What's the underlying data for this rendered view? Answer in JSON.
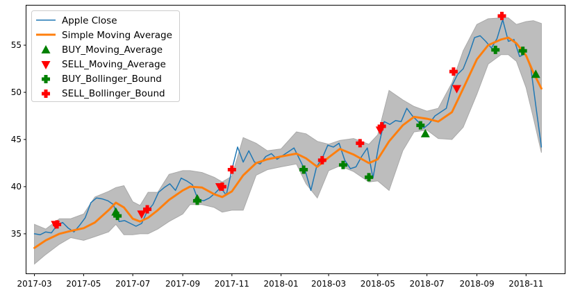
{
  "chart_data": {
    "type": "line",
    "title": "",
    "xlabel": "",
    "ylabel": "",
    "grid": false,
    "legend_position": "top-left",
    "x_range": [
      "2017-02-19",
      "2018-12-19"
    ],
    "ylim": [
      30.8,
      59.2
    ],
    "x_ticks": [
      "2017-03",
      "2017-05",
      "2017-07",
      "2017-09",
      "2017-11",
      "2018-01",
      "2018-03",
      "2018-05",
      "2018-07",
      "2018-09",
      "2018-11"
    ],
    "y_ticks": [
      35,
      40,
      45,
      50,
      55
    ],
    "colors": {
      "close": "#1f77b4",
      "sma": "#ff7f0e",
      "band": "#bdbdbd",
      "band_edge": "#a9a9a9",
      "buy": "#008000",
      "sell": "#ff0000"
    },
    "series": [
      {
        "name": "Apple Close",
        "points": [
          [
            "2017-03-01",
            35.0
          ],
          [
            "2017-03-08",
            34.9
          ],
          [
            "2017-03-15",
            35.2
          ],
          [
            "2017-03-22",
            35.1
          ],
          [
            "2017-03-29",
            35.9
          ],
          [
            "2017-04-05",
            36.2
          ],
          [
            "2017-04-12",
            35.6
          ],
          [
            "2017-04-19",
            35.2
          ],
          [
            "2017-04-26",
            35.9
          ],
          [
            "2017-05-03",
            36.7
          ],
          [
            "2017-05-10",
            38.3
          ],
          [
            "2017-05-17",
            38.8
          ],
          [
            "2017-05-24",
            38.7
          ],
          [
            "2017-05-31",
            38.5
          ],
          [
            "2017-06-07",
            38.1
          ],
          [
            "2017-06-14",
            36.3
          ],
          [
            "2017-06-21",
            36.4
          ],
          [
            "2017-06-28",
            36.1
          ],
          [
            "2017-07-05",
            35.8
          ],
          [
            "2017-07-12",
            36.1
          ],
          [
            "2017-07-19",
            37.4
          ],
          [
            "2017-07-26",
            38.1
          ],
          [
            "2017-08-02",
            39.4
          ],
          [
            "2017-08-09",
            39.9
          ],
          [
            "2017-08-16",
            40.3
          ],
          [
            "2017-08-23",
            39.6
          ],
          [
            "2017-08-30",
            40.9
          ],
          [
            "2017-09-06",
            40.6
          ],
          [
            "2017-09-13",
            40.2
          ],
          [
            "2017-09-20",
            38.6
          ],
          [
            "2017-09-27",
            38.5
          ],
          [
            "2017-10-04",
            38.8
          ],
          [
            "2017-10-11",
            39.3
          ],
          [
            "2017-10-18",
            39.9
          ],
          [
            "2017-10-25",
            39.1
          ],
          [
            "2017-11-01",
            41.8
          ],
          [
            "2017-11-08",
            44.2
          ],
          [
            "2017-11-15",
            42.6
          ],
          [
            "2017-11-22",
            43.8
          ],
          [
            "2017-11-29",
            42.6
          ],
          [
            "2017-12-06",
            42.4
          ],
          [
            "2017-12-13",
            43.2
          ],
          [
            "2017-12-20",
            43.5
          ],
          [
            "2017-12-27",
            42.9
          ],
          [
            "2018-01-03",
            43.3
          ],
          [
            "2018-01-10",
            43.7
          ],
          [
            "2018-01-17",
            44.1
          ],
          [
            "2018-01-24",
            42.9
          ],
          [
            "2018-01-31",
            41.7
          ],
          [
            "2018-02-07",
            39.6
          ],
          [
            "2018-02-14",
            42.1
          ],
          [
            "2018-02-21",
            43.0
          ],
          [
            "2018-02-28",
            44.4
          ],
          [
            "2018-03-07",
            44.2
          ],
          [
            "2018-03-14",
            44.6
          ],
          [
            "2018-03-21",
            42.8
          ],
          [
            "2018-03-28",
            41.9
          ],
          [
            "2018-04-04",
            42.1
          ],
          [
            "2018-04-11",
            43.2
          ],
          [
            "2018-04-18",
            44.1
          ],
          [
            "2018-04-25",
            40.9
          ],
          [
            "2018-05-02",
            44.3
          ],
          [
            "2018-05-09",
            46.9
          ],
          [
            "2018-05-16",
            46.6
          ],
          [
            "2018-05-23",
            47.0
          ],
          [
            "2018-05-30",
            46.9
          ],
          [
            "2018-06-06",
            48.3
          ],
          [
            "2018-06-13",
            47.5
          ],
          [
            "2018-06-20",
            46.9
          ],
          [
            "2018-06-27",
            46.2
          ],
          [
            "2018-07-04",
            46.7
          ],
          [
            "2018-07-11",
            47.5
          ],
          [
            "2018-07-18",
            47.9
          ],
          [
            "2018-07-25",
            48.3
          ],
          [
            "2018-08-01",
            50.7
          ],
          [
            "2018-08-08",
            51.9
          ],
          [
            "2018-08-15",
            52.5
          ],
          [
            "2018-08-22",
            54.0
          ],
          [
            "2018-08-29",
            55.8
          ],
          [
            "2018-09-05",
            56.0
          ],
          [
            "2018-09-12",
            55.4
          ],
          [
            "2018-09-19",
            54.7
          ],
          [
            "2018-09-26",
            55.7
          ],
          [
            "2018-10-03",
            57.7
          ],
          [
            "2018-10-10",
            55.4
          ],
          [
            "2018-10-17",
            55.6
          ],
          [
            "2018-10-24",
            53.8
          ],
          [
            "2018-10-31",
            54.1
          ],
          [
            "2018-11-07",
            52.5
          ],
          [
            "2018-11-14",
            48.0
          ],
          [
            "2018-11-20",
            44.2
          ]
        ]
      },
      {
        "name": "Simple Moving Average",
        "points": [
          [
            "2017-03-01",
            33.5
          ],
          [
            "2017-03-15",
            34.3
          ],
          [
            "2017-04-01",
            35.0
          ],
          [
            "2017-04-15",
            35.3
          ],
          [
            "2017-05-01",
            35.6
          ],
          [
            "2017-05-15",
            36.2
          ],
          [
            "2017-06-01",
            37.5
          ],
          [
            "2017-06-10",
            38.3
          ],
          [
            "2017-06-20",
            37.8
          ],
          [
            "2017-07-01",
            36.6
          ],
          [
            "2017-07-10",
            36.3
          ],
          [
            "2017-07-20",
            36.7
          ],
          [
            "2017-08-01",
            37.5
          ],
          [
            "2017-08-15",
            38.6
          ],
          [
            "2017-09-01",
            39.6
          ],
          [
            "2017-09-10",
            40.0
          ],
          [
            "2017-09-25",
            39.9
          ],
          [
            "2017-10-10",
            39.2
          ],
          [
            "2017-10-20",
            38.9
          ],
          [
            "2017-11-01",
            39.5
          ],
          [
            "2017-11-15",
            41.2
          ],
          [
            "2017-12-01",
            42.5
          ],
          [
            "2017-12-15",
            42.9
          ],
          [
            "2018-01-01",
            43.2
          ],
          [
            "2018-01-20",
            43.5
          ],
          [
            "2018-02-01",
            43.0
          ],
          [
            "2018-02-15",
            42.1
          ],
          [
            "2018-03-01",
            43.1
          ],
          [
            "2018-03-15",
            44.0
          ],
          [
            "2018-04-01",
            43.4
          ],
          [
            "2018-04-20",
            42.5
          ],
          [
            "2018-05-01",
            42.9
          ],
          [
            "2018-05-15",
            44.8
          ],
          [
            "2018-06-01",
            46.5
          ],
          [
            "2018-06-15",
            47.4
          ],
          [
            "2018-07-01",
            47.2
          ],
          [
            "2018-07-15",
            46.9
          ],
          [
            "2018-08-01",
            47.9
          ],
          [
            "2018-08-15",
            50.4
          ],
          [
            "2018-09-01",
            53.5
          ],
          [
            "2018-09-15",
            55.0
          ],
          [
            "2018-10-01",
            55.6
          ],
          [
            "2018-10-10",
            55.8
          ],
          [
            "2018-10-20",
            55.2
          ],
          [
            "2018-11-01",
            53.9
          ],
          [
            "2018-11-10",
            52.1
          ],
          [
            "2018-11-20",
            50.4
          ]
        ]
      }
    ],
    "bollinger_band": [
      [
        "2017-03-01",
        36.0,
        31.8
      ],
      [
        "2017-03-15",
        35.5,
        32.8
      ],
      [
        "2017-04-01",
        36.6,
        33.9
      ],
      [
        "2017-04-15",
        36.6,
        34.6
      ],
      [
        "2017-05-01",
        37.1,
        34.3
      ],
      [
        "2017-05-15",
        38.9,
        34.7
      ],
      [
        "2017-06-01",
        39.5,
        35.2
      ],
      [
        "2017-06-10",
        39.9,
        36.0
      ],
      [
        "2017-06-20",
        40.1,
        34.9
      ],
      [
        "2017-07-01",
        38.4,
        34.9
      ],
      [
        "2017-07-10",
        38.0,
        35.0
      ],
      [
        "2017-07-20",
        39.4,
        35.0
      ],
      [
        "2017-08-01",
        39.4,
        35.5
      ],
      [
        "2017-08-15",
        41.3,
        36.3
      ],
      [
        "2017-09-01",
        41.7,
        37.1
      ],
      [
        "2017-09-10",
        41.7,
        38.1
      ],
      [
        "2017-09-25",
        41.5,
        38.1
      ],
      [
        "2017-10-10",
        41.0,
        37.8
      ],
      [
        "2017-10-20",
        40.5,
        37.3
      ],
      [
        "2017-11-01",
        41.1,
        37.5
      ],
      [
        "2017-11-15",
        45.2,
        37.5
      ],
      [
        "2017-12-01",
        44.6,
        41.2
      ],
      [
        "2017-12-15",
        43.8,
        41.8
      ],
      [
        "2018-01-01",
        44.0,
        42.1
      ],
      [
        "2018-01-20",
        45.8,
        42.4
      ],
      [
        "2018-02-01",
        45.6,
        40.3
      ],
      [
        "2018-02-15",
        44.8,
        38.8
      ],
      [
        "2018-03-01",
        44.5,
        41.7
      ],
      [
        "2018-03-15",
        44.9,
        42.2
      ],
      [
        "2018-04-01",
        45.1,
        41.6
      ],
      [
        "2018-04-20",
        44.5,
        40.5
      ],
      [
        "2018-05-01",
        45.5,
        40.6
      ],
      [
        "2018-05-15",
        50.2,
        39.6
      ],
      [
        "2018-06-01",
        49.2,
        43.8
      ],
      [
        "2018-06-15",
        48.5,
        45.8
      ],
      [
        "2018-07-01",
        48.0,
        46.0
      ],
      [
        "2018-07-15",
        48.3,
        45.1
      ],
      [
        "2018-08-01",
        51.0,
        45.0
      ],
      [
        "2018-08-15",
        54.4,
        46.3
      ],
      [
        "2018-09-01",
        57.2,
        49.8
      ],
      [
        "2018-09-15",
        57.8,
        53.0
      ],
      [
        "2018-10-01",
        57.9,
        54.0
      ],
      [
        "2018-10-10",
        57.9,
        54.0
      ],
      [
        "2018-10-20",
        57.2,
        53.3
      ],
      [
        "2018-11-01",
        57.5,
        50.5
      ],
      [
        "2018-11-10",
        57.6,
        47.3
      ],
      [
        "2018-11-20",
        57.3,
        43.6
      ]
    ],
    "markers": [
      {
        "name": "BUY_Moving_Average",
        "symbol": "triangle-up",
        "color": "#008000",
        "points": [
          [
            "2017-06-10",
            37.3
          ],
          [
            "2017-09-19",
            38.7
          ],
          [
            "2018-06-29",
            45.6
          ],
          [
            "2018-11-13",
            51.9
          ]
        ]
      },
      {
        "name": "SELL_Moving_Average",
        "symbol": "triangle-down",
        "color": "#ff0000",
        "points": [
          [
            "2017-03-27",
            36.0
          ],
          [
            "2017-07-12",
            37.1
          ],
          [
            "2017-10-17",
            40.0
          ],
          [
            "2018-05-04",
            46.0
          ],
          [
            "2018-08-07",
            50.4
          ]
        ]
      },
      {
        "name": "BUY_Bollinger_Bound",
        "symbol": "plus",
        "color": "#008000",
        "points": [
          [
            "2017-06-12",
            36.9
          ],
          [
            "2017-09-19",
            38.5
          ],
          [
            "2018-01-29",
            41.8
          ],
          [
            "2018-03-19",
            42.3
          ],
          [
            "2018-04-20",
            41.0
          ],
          [
            "2018-06-23",
            46.5
          ],
          [
            "2018-09-24",
            54.5
          ],
          [
            "2018-10-28",
            54.4
          ]
        ]
      },
      {
        "name": "SELL_Bollinger_Bound",
        "symbol": "plus",
        "color": "#ff0000",
        "points": [
          [
            "2017-03-29",
            36.0
          ],
          [
            "2017-07-19",
            37.6
          ],
          [
            "2017-10-20",
            40.0
          ],
          [
            "2017-11-01",
            41.8
          ],
          [
            "2018-02-21",
            42.8
          ],
          [
            "2018-04-09",
            44.6
          ],
          [
            "2018-05-06",
            46.4
          ],
          [
            "2018-08-03",
            52.2
          ],
          [
            "2018-10-02",
            58.1
          ]
        ]
      }
    ]
  }
}
